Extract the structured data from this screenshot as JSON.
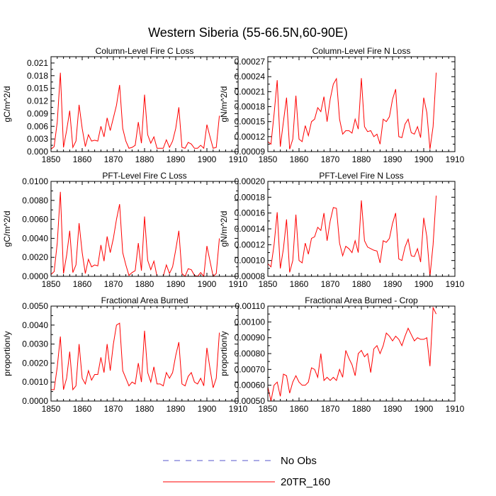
{
  "title": "Western Siberia (55-66.5N,60-90E)",
  "legend": [
    {
      "label": "No Obs",
      "color": "#5555cc",
      "dashed": true
    },
    {
      "label": "20TR_160",
      "color": "#ff0000",
      "dashed": false
    }
  ],
  "chart_data": [
    {
      "type": "line",
      "title": "Column-Level Fire C Loss",
      "xlabel": "",
      "ylabel": "gC/m^2/d",
      "xlim": [
        1850,
        1910
      ],
      "ylim": [
        0,
        0.0225
      ],
      "xticks": [
        1850,
        1860,
        1870,
        1880,
        1890,
        1900,
        1910
      ],
      "yticks": [
        "0.000",
        "0.003",
        "0.006",
        "0.009",
        "0.012",
        "0.015",
        "0.018",
        "0.021"
      ],
      "ytick_values": [
        0,
        0.003,
        0.006,
        0.009,
        0.012,
        0.015,
        0.018,
        0.021
      ],
      "grid": false,
      "series": [
        {
          "name": "20TR_160",
          "color": "#ff0000",
          "x": [
            1850,
            1851,
            1852,
            1853,
            1854,
            1855,
            1856,
            1857,
            1858,
            1859,
            1860,
            1861,
            1862,
            1863,
            1864,
            1865,
            1866,
            1867,
            1868,
            1869,
            1870,
            1871,
            1872,
            1873,
            1874,
            1875,
            1876,
            1877,
            1878,
            1879,
            1880,
            1881,
            1882,
            1883,
            1884,
            1885,
            1886,
            1887,
            1888,
            1889,
            1890,
            1891,
            1892,
            1893,
            1894,
            1895,
            1896,
            1897,
            1898,
            1899,
            1900,
            1901,
            1902,
            1903,
            1904
          ],
          "values": [
            0.0006,
            0.0012,
            0.007,
            0.0187,
            0.001,
            0.005,
            0.0097,
            0.001,
            0.0025,
            0.0111,
            0.0055,
            0.0012,
            0.004,
            0.0025,
            0.0027,
            0.0025,
            0.006,
            0.0035,
            0.008,
            0.005,
            0.008,
            0.011,
            0.0158,
            0.0055,
            0.0025,
            0.0008,
            0.001,
            0.0015,
            0.007,
            0.002,
            0.0135,
            0.004,
            0.002,
            0.0035,
            0.0008,
            0.0008,
            0.0008,
            0.0028,
            0.001,
            0.0025,
            0.0055,
            0.0105,
            0.001,
            0.0008,
            0.0022,
            0.0018,
            0.0008,
            0.0008,
            0.0015,
            0.0008,
            0.0064,
            0.0035,
            0.0008,
            0.001,
            0.0085
          ]
        }
      ]
    },
    {
      "type": "line",
      "title": "Column-Level Fire N Loss",
      "xlabel": "",
      "ylabel": "gN/m^2/d",
      "xlim": [
        1850,
        1910
      ],
      "ylim": [
        9e-05,
        0.00028
      ],
      "xticks": [
        1850,
        1860,
        1870,
        1880,
        1890,
        1900,
        1910
      ],
      "yticks": [
        "0.00009",
        "0.00012",
        "0.00015",
        "0.00018",
        "0.00021",
        "0.00024",
        "0.00027"
      ],
      "ytick_values": [
        9e-05,
        0.00012,
        0.00015,
        0.00018,
        0.00021,
        0.00024,
        0.00027
      ],
      "grid": false,
      "series": [
        {
          "name": "20TR_160",
          "color": "#ff0000",
          "x": [
            1850,
            1851,
            1852,
            1853,
            1854,
            1855,
            1856,
            1857,
            1858,
            1859,
            1860,
            1861,
            1862,
            1863,
            1864,
            1865,
            1866,
            1867,
            1868,
            1869,
            1870,
            1871,
            1872,
            1873,
            1874,
            1875,
            1876,
            1877,
            1878,
            1879,
            1880,
            1881,
            1882,
            1883,
            1884,
            1885,
            1886,
            1887,
            1888,
            1889,
            1890,
            1891,
            1892,
            1893,
            1894,
            1895,
            1896,
            1897,
            1898,
            1899,
            1900,
            1901,
            1902,
            1903,
            1904
          ],
          "values": [
            0.00011,
            0.000105,
            0.000165,
            0.000233,
            0.0001,
            0.00015,
            0.000198,
            9.5e-05,
            0.000115,
            0.000202,
            0.000115,
            0.00011,
            0.000142,
            0.000122,
            0.00015,
            0.000155,
            0.000178,
            0.00017,
            0.0002,
            0.00015,
            0.000195,
            0.000225,
            0.000236,
            0.000155,
            0.000125,
            0.000132,
            0.000132,
            0.000127,
            0.000155,
            0.000135,
            0.000237,
            0.00014,
            0.00013,
            0.000132,
            0.00012,
            0.000125,
            0.000105,
            0.000155,
            0.00015,
            0.00016,
            0.000195,
            0.000215,
            0.00012,
            0.000118,
            0.000145,
            0.000155,
            0.000128,
            0.000125,
            0.00014,
            0.000118,
            0.000198,
            0.000168,
            9.5e-05,
            0.00014,
            0.000248
          ]
        }
      ]
    },
    {
      "type": "line",
      "title": "PFT-Level Fire C Loss",
      "xlabel": "",
      "ylabel": "gC/m^2/d",
      "xlim": [
        1850,
        1910
      ],
      "ylim": [
        0,
        0.01
      ],
      "xticks": [
        1850,
        1860,
        1870,
        1880,
        1890,
        1900,
        1910
      ],
      "yticks": [
        "0.0000",
        "0.0020",
        "0.0040",
        "0.0060",
        "0.0080",
        "0.0100"
      ],
      "ytick_values": [
        0,
        0.002,
        0.004,
        0.006,
        0.008,
        0.01
      ],
      "grid": false,
      "series": [
        {
          "name": "20TR_160",
          "color": "#ff0000",
          "x": [
            1850,
            1851,
            1852,
            1853,
            1854,
            1855,
            1856,
            1857,
            1858,
            1859,
            1860,
            1861,
            1862,
            1863,
            1864,
            1865,
            1866,
            1867,
            1868,
            1869,
            1870,
            1871,
            1872,
            1873,
            1874,
            1875,
            1876,
            1877,
            1878,
            1879,
            1880,
            1881,
            1882,
            1883,
            1884,
            1885,
            1886,
            1887,
            1888,
            1889,
            1890,
            1891,
            1892,
            1893,
            1894,
            1895,
            1896,
            1897,
            1898,
            1899,
            1900,
            1901,
            1902,
            1903,
            1904
          ],
          "values": [
            0.0002,
            0.0005,
            0.0035,
            0.0089,
            0.0003,
            0.0022,
            0.0048,
            0.0004,
            0.0012,
            0.0056,
            0.0025,
            0.0003,
            0.0018,
            0.001,
            0.0012,
            0.0011,
            0.0033,
            0.0016,
            0.0042,
            0.0025,
            0.004,
            0.006,
            0.0076,
            0.0025,
            0.0012,
            0.0001,
            0.0004,
            0.0006,
            0.0035,
            0.0006,
            0.0063,
            0.0017,
            0.0007,
            0.0016,
            0.0,
            0.0,
            0.0,
            0.0012,
            0.0003,
            0.001,
            0.0028,
            0.0048,
            0.0003,
            0.0,
            0.0008,
            0.0007,
            0.0001,
            0.0,
            0.0004,
            0.0,
            0.0032,
            0.0016,
            0.0,
            0.0003,
            0.004
          ]
        }
      ]
    },
    {
      "type": "line",
      "title": "PFT-Level Fire N Loss",
      "xlabel": "",
      "ylabel": "gN/m^2/d",
      "xlim": [
        1850,
        1910
      ],
      "ylim": [
        8e-05,
        0.0002
      ],
      "xticks": [
        1850,
        1860,
        1870,
        1880,
        1890,
        1900,
        1910
      ],
      "yticks": [
        "0.00008",
        "0.00010",
        "0.00012",
        "0.00014",
        "0.00016",
        "0.00018",
        "0.00020"
      ],
      "ytick_values": [
        8e-05,
        0.0001,
        0.00012,
        0.00014,
        0.00016,
        0.00018,
        0.0002
      ],
      "grid": false,
      "series": [
        {
          "name": "20TR_160",
          "color": "#ff0000",
          "x": [
            1850,
            1851,
            1852,
            1853,
            1854,
            1855,
            1856,
            1857,
            1858,
            1859,
            1860,
            1861,
            1862,
            1863,
            1864,
            1865,
            1866,
            1867,
            1868,
            1869,
            1870,
            1871,
            1872,
            1873,
            1874,
            1875,
            1876,
            1877,
            1878,
            1879,
            1880,
            1881,
            1882,
            1883,
            1884,
            1885,
            1886,
            1887,
            1888,
            1889,
            1890,
            1891,
            1892,
            1893,
            1894,
            1895,
            1896,
            1897,
            1898,
            1899,
            1900,
            1901,
            1902,
            1903,
            1904
          ],
          "values": [
            9.6e-05,
            9.2e-05,
            0.00012,
            0.000161,
            9e-05,
            0.000115,
            0.000152,
            8.5e-05,
            0.0001,
            0.000158,
            0.0001,
            9.7e-05,
            0.000122,
            0.000108,
            0.000128,
            0.00013,
            0.000142,
            0.000138,
            0.00016,
            0.000125,
            0.00015,
            0.000167,
            0.000166,
            0.000122,
            0.000106,
            0.000118,
            0.000115,
            0.00011,
            0.000125,
            0.00011,
            0.000176,
            0.000125,
            0.000117,
            0.000115,
            0.000113,
            0.000112,
            9.7e-05,
            0.000125,
            0.000123,
            0.000128,
            0.000147,
            0.00016,
            0.000102,
            0.0001,
            0.000117,
            0.000127,
            0.000106,
            0.000105,
            0.000115,
            9.8e-05,
            0.000154,
            0.00013,
            8e-05,
            0.00012,
            0.000182
          ]
        }
      ]
    },
    {
      "type": "line",
      "title": "Fractional Area Burned",
      "xlabel": "",
      "ylabel": "proportion/y",
      "xlim": [
        1850,
        1910
      ],
      "ylim": [
        0,
        0.005
      ],
      "xticks": [
        1850,
        1860,
        1870,
        1880,
        1890,
        1900,
        1910
      ],
      "yticks": [
        "0.0000",
        "0.0010",
        "0.0020",
        "0.0030",
        "0.0040",
        "0.0050"
      ],
      "ytick_values": [
        0,
        0.001,
        0.002,
        0.003,
        0.004,
        0.005
      ],
      "grid": false,
      "series": [
        {
          "name": "20TR_160",
          "color": "#ff0000",
          "x": [
            1850,
            1851,
            1852,
            1853,
            1854,
            1855,
            1856,
            1857,
            1858,
            1859,
            1860,
            1861,
            1862,
            1863,
            1864,
            1865,
            1866,
            1867,
            1868,
            1869,
            1870,
            1871,
            1872,
            1873,
            1874,
            1875,
            1876,
            1877,
            1878,
            1879,
            1880,
            1881,
            1882,
            1883,
            1884,
            1885,
            1886,
            1887,
            1888,
            1889,
            1890,
            1891,
            1892,
            1893,
            1894,
            1895,
            1896,
            1897,
            1898,
            1899,
            1900,
            1901,
            1902,
            1903,
            1904
          ],
          "values": [
            0.0006,
            0.0006,
            0.0018,
            0.0034,
            0.0006,
            0.0012,
            0.0026,
            0.0006,
            0.0008,
            0.003,
            0.0012,
            0.0009,
            0.0016,
            0.0011,
            0.0014,
            0.0014,
            0.0023,
            0.0015,
            0.003,
            0.0016,
            0.003,
            0.004,
            0.0041,
            0.0016,
            0.0012,
            0.0008,
            0.001,
            0.0009,
            0.002,
            0.001,
            0.0037,
            0.0015,
            0.001,
            0.0018,
            0.0009,
            0.0009,
            0.0008,
            0.0015,
            0.0012,
            0.0015,
            0.0024,
            0.0031,
            0.0009,
            0.0008,
            0.0013,
            0.0015,
            0.001,
            0.0009,
            0.0012,
            0.0008,
            0.0028,
            0.0017,
            0.0007,
            0.0012,
            0.0036
          ]
        }
      ]
    },
    {
      "type": "line",
      "title": "Fractional Area Burned - Crop",
      "xlabel": "",
      "ylabel": "proportion/y",
      "xlim": [
        1850,
        1910
      ],
      "ylim": [
        0.0005,
        0.0011
      ],
      "xticks": [
        1850,
        1860,
        1870,
        1880,
        1890,
        1900,
        1910
      ],
      "yticks": [
        "0.00050",
        "0.00060",
        "0.00070",
        "0.00080",
        "0.00090",
        "0.00100",
        "0.00110"
      ],
      "ytick_values": [
        0.0005,
        0.0006,
        0.0007,
        0.0008,
        0.0009,
        0.001,
        0.0011
      ],
      "grid": false,
      "series": [
        {
          "name": "20TR_160",
          "color": "#ff0000",
          "x": [
            1850,
            1851,
            1852,
            1853,
            1854,
            1855,
            1856,
            1857,
            1858,
            1859,
            1860,
            1861,
            1862,
            1863,
            1864,
            1865,
            1866,
            1867,
            1868,
            1869,
            1870,
            1871,
            1872,
            1873,
            1874,
            1875,
            1876,
            1877,
            1878,
            1879,
            1880,
            1881,
            1882,
            1883,
            1884,
            1885,
            1886,
            1887,
            1888,
            1889,
            1890,
            1891,
            1892,
            1893,
            1894,
            1895,
            1896,
            1897,
            1898,
            1899,
            1900,
            1901,
            1902,
            1903,
            1904
          ],
          "values": [
            0.00059,
            0.0005,
            0.0006,
            0.00062,
            0.00053,
            0.00067,
            0.00066,
            0.00055,
            0.00062,
            0.00066,
            0.00062,
            0.0006,
            0.0006,
            0.00062,
            0.00071,
            0.0007,
            0.00065,
            0.0008,
            0.00063,
            0.00065,
            0.00063,
            0.00065,
            0.00063,
            0.0007,
            0.00065,
            0.00082,
            0.00077,
            0.00073,
            0.00066,
            0.0008,
            0.00082,
            0.00078,
            0.0008,
            0.00068,
            0.00083,
            0.00085,
            0.0008,
            0.00085,
            0.00093,
            0.00091,
            0.00088,
            0.00091,
            0.00089,
            0.00085,
            0.00091,
            0.00096,
            0.00092,
            0.00088,
            0.0009,
            0.00089,
            0.00089,
            0.0009,
            0.00072,
            0.00109,
            0.00105
          ]
        }
      ]
    }
  ]
}
